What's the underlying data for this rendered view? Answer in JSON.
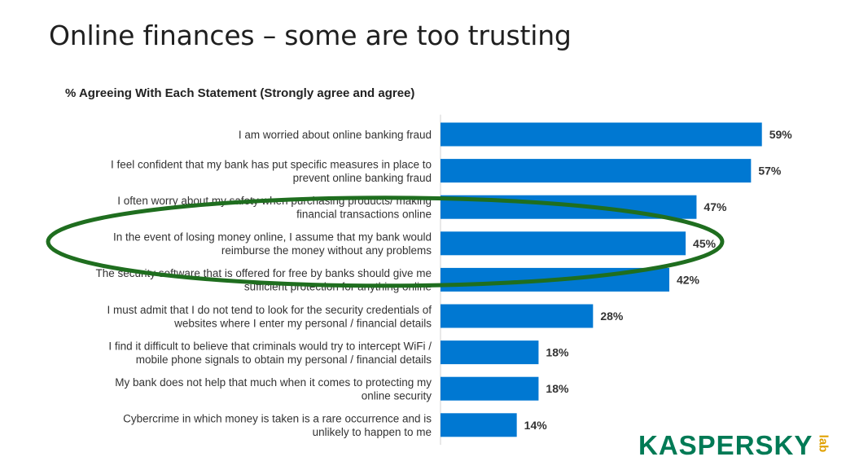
{
  "title": "Online finances – some are too trusting",
  "logo": {
    "main": "KASPERSKY",
    "lab": "lab"
  },
  "colors": {
    "bar": "#0078d2",
    "highlight": "#1f6e1f",
    "logo": "#007a55"
  },
  "chart_data": {
    "type": "bar",
    "orientation": "horizontal",
    "title": "% Agreeing With Each Statement (Strongly agree and agree)",
    "xlabel": "",
    "ylabel": "",
    "xlim": [
      0,
      100
    ],
    "grid": false,
    "highlighted_category_index": 3,
    "categories": [
      "I am worried about online banking fraud",
      "I feel confident that my bank has put specific measures in place to prevent online banking fraud",
      "I often worry about my safety when purchasing products/ making financial transactions online",
      "In the event of losing money online, I assume that my bank would reimburse the money without any problems",
      "The security software that is offered for free by banks should give me sufficient protection for anything online",
      "I must admit that I do not tend to look for the security credentials of websites where I enter my personal / financial details",
      "I find it difficult to believe that criminals would try to intercept WiFi / mobile phone signals to obtain my personal / financial details",
      "My bank does not help that much when it comes to protecting my online security",
      "Cybercrime in which money is taken is a rare occurrence and is unlikely to happen to me"
    ],
    "label_lines": [
      [
        "I am worried about online banking fraud"
      ],
      [
        "I feel confident that my bank has put specific measures in place to",
        "prevent online banking fraud"
      ],
      [
        "I often worry about my safety when purchasing products/ making",
        "financial transactions online"
      ],
      [
        "In the event of losing money online, I assume that my bank would",
        "reimburse the money without any problems"
      ],
      [
        "The security software that is offered for free by banks should give me",
        "sufficient protection for anything online"
      ],
      [
        "I must admit that I do not tend to look for the security credentials of",
        "websites where I enter my personal / financial details"
      ],
      [
        "I find it difficult to believe that criminals would try to intercept WiFi /",
        "mobile phone signals to obtain my personal / financial details"
      ],
      [
        "My bank does not help that much when it comes to protecting my",
        "online security"
      ],
      [
        "Cybercrime in which money is taken is a rare occurrence and is",
        "unlikely to happen to me"
      ]
    ],
    "values": [
      59,
      57,
      47,
      45,
      42,
      28,
      18,
      18,
      14
    ],
    "data_labels": [
      "59%",
      "57%",
      "47%",
      "45%",
      "42%",
      "28%",
      "18%",
      "18%",
      "14%"
    ]
  }
}
